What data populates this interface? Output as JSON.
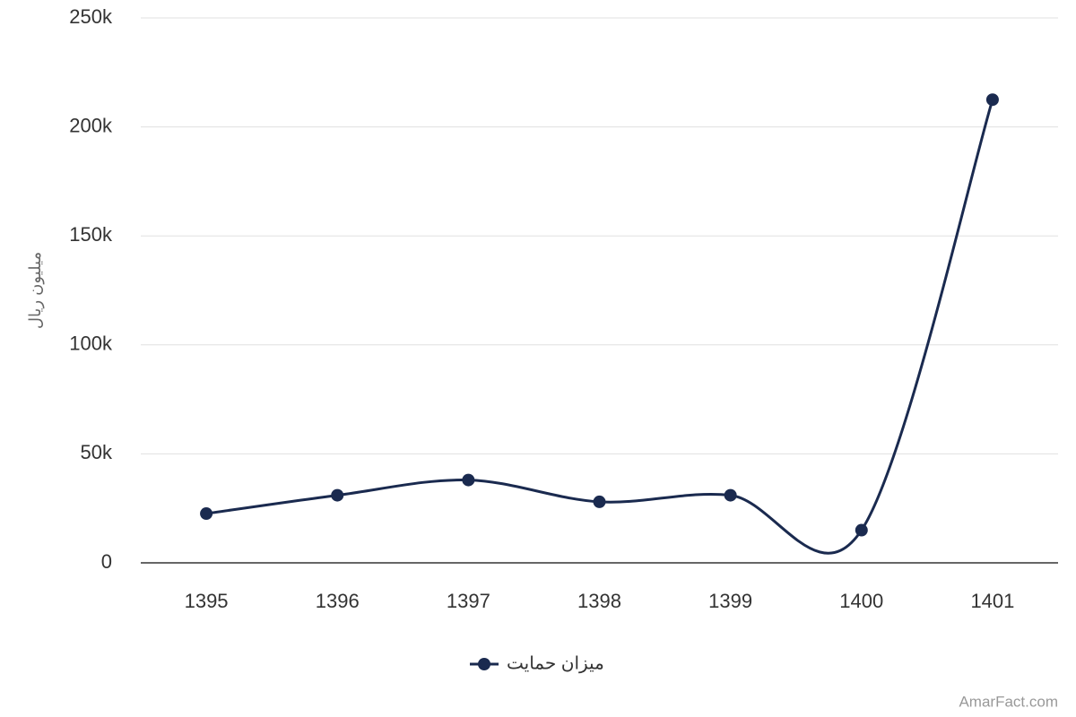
{
  "chart_data": {
    "type": "line",
    "y_label": "میلیون ریال",
    "categories": [
      "1395",
      "1396",
      "1397",
      "1398",
      "1399",
      "1400",
      "1401"
    ],
    "series": [
      {
        "name": "میزان حمایت",
        "color": "#1a2a4f",
        "values": [
          22600,
          31000,
          38000,
          28000,
          31000,
          15000,
          212500
        ]
      }
    ],
    "ylim": [
      0,
      250000
    ],
    "yticks": [
      0,
      {
        "value": 50000,
        "label": "50k"
      },
      {
        "value": 100000,
        "label": "100k"
      },
      {
        "value": 150000,
        "label": "150k"
      },
      {
        "value": 200000,
        "label": "200k"
      },
      {
        "value": 250000,
        "label": "250k"
      }
    ],
    "grid": true,
    "smooth": true,
    "credit": "AmarFact.com"
  }
}
